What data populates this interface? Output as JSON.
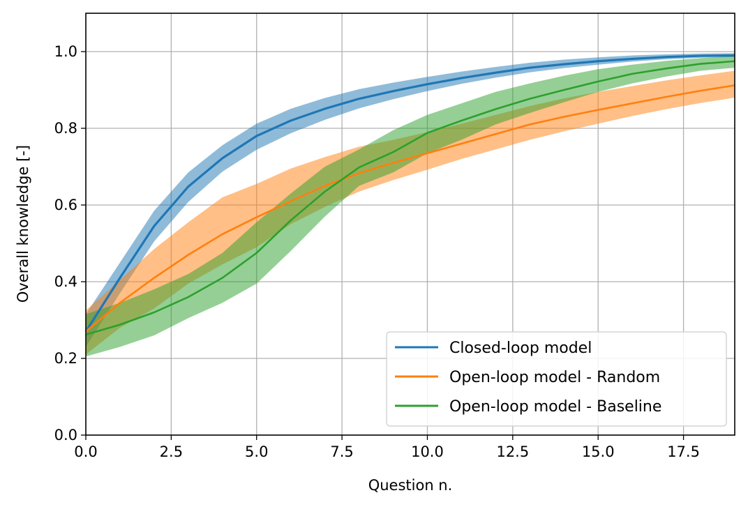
{
  "chart_data": {
    "type": "line",
    "title": "",
    "xlabel": "Question n.",
    "ylabel": "Overall knowledge [-]",
    "xlim": [
      0,
      19
    ],
    "ylim": [
      0,
      1.1
    ],
    "xticks": [
      0,
      2.5,
      5,
      7.5,
      10,
      12.5,
      15,
      17.5
    ],
    "xtick_labels": [
      "0.0",
      "2.5",
      "5.0",
      "7.5",
      "10.0",
      "12.5",
      "15.0",
      "17.5"
    ],
    "yticks": [
      0,
      0.2,
      0.4,
      0.6,
      0.8,
      1.0
    ],
    "ytick_labels": [
      "0.0",
      "0.2",
      "0.4",
      "0.6",
      "0.8",
      "1.0"
    ],
    "grid": true,
    "legend_position": "lower-right",
    "x": [
      0,
      1,
      2,
      3,
      4,
      5,
      6,
      7,
      8,
      9,
      10,
      11,
      12,
      13,
      14,
      15,
      16,
      17,
      18,
      19
    ],
    "series": [
      {
        "name": "Closed-loop model",
        "color": "#1f77b4",
        "band_color": "#1f77b4",
        "values": [
          0.27,
          0.41,
          0.545,
          0.648,
          0.722,
          0.78,
          0.82,
          0.851,
          0.877,
          0.897,
          0.915,
          0.931,
          0.945,
          0.958,
          0.967,
          0.975,
          0.981,
          0.986,
          0.989,
          0.99
        ],
        "lower": [
          0.23,
          0.37,
          0.505,
          0.608,
          0.687,
          0.744,
          0.787,
          0.822,
          0.852,
          0.876,
          0.897,
          0.916,
          0.932,
          0.946,
          0.957,
          0.966,
          0.974,
          0.98,
          0.984,
          0.986
        ],
        "upper": [
          0.315,
          0.45,
          0.585,
          0.685,
          0.756,
          0.812,
          0.851,
          0.879,
          0.902,
          0.919,
          0.934,
          0.948,
          0.96,
          0.971,
          0.979,
          0.985,
          0.99,
          0.993,
          0.995,
          0.996
        ]
      },
      {
        "name": "Open-loop model - Random",
        "color": "#ff7f0e",
        "band_color": "#ff7f0e",
        "values": [
          0.27,
          0.345,
          0.41,
          0.47,
          0.524,
          0.568,
          0.61,
          0.65,
          0.683,
          0.71,
          0.735,
          0.76,
          0.785,
          0.81,
          0.83,
          0.848,
          0.865,
          0.882,
          0.898,
          0.912
        ],
        "lower": [
          0.21,
          0.28,
          0.33,
          0.395,
          0.445,
          0.49,
          0.55,
          0.595,
          0.635,
          0.665,
          0.692,
          0.72,
          0.745,
          0.77,
          0.792,
          0.812,
          0.832,
          0.85,
          0.866,
          0.88
        ],
        "upper": [
          0.325,
          0.405,
          0.485,
          0.555,
          0.62,
          0.655,
          0.695,
          0.725,
          0.752,
          0.77,
          0.79,
          0.812,
          0.835,
          0.858,
          0.878,
          0.895,
          0.91,
          0.925,
          0.938,
          0.95
        ]
      },
      {
        "name": "Open-loop model - Baseline",
        "color": "#2ca02c",
        "band_color": "#2ca02c",
        "values": [
          0.262,
          0.288,
          0.32,
          0.36,
          0.41,
          0.475,
          0.56,
          0.635,
          0.698,
          0.738,
          0.788,
          0.82,
          0.85,
          0.877,
          0.9,
          0.922,
          0.942,
          0.956,
          0.968,
          0.975
        ],
        "lower": [
          0.205,
          0.23,
          0.26,
          0.305,
          0.345,
          0.395,
          0.48,
          0.57,
          0.65,
          0.685,
          0.735,
          0.77,
          0.81,
          0.84,
          0.868,
          0.895,
          0.917,
          0.935,
          0.95,
          0.958
        ],
        "upper": [
          0.315,
          0.345,
          0.38,
          0.42,
          0.475,
          0.555,
          0.63,
          0.7,
          0.745,
          0.795,
          0.835,
          0.865,
          0.895,
          0.917,
          0.937,
          0.954,
          0.966,
          0.976,
          0.983,
          0.988
        ]
      }
    ]
  }
}
